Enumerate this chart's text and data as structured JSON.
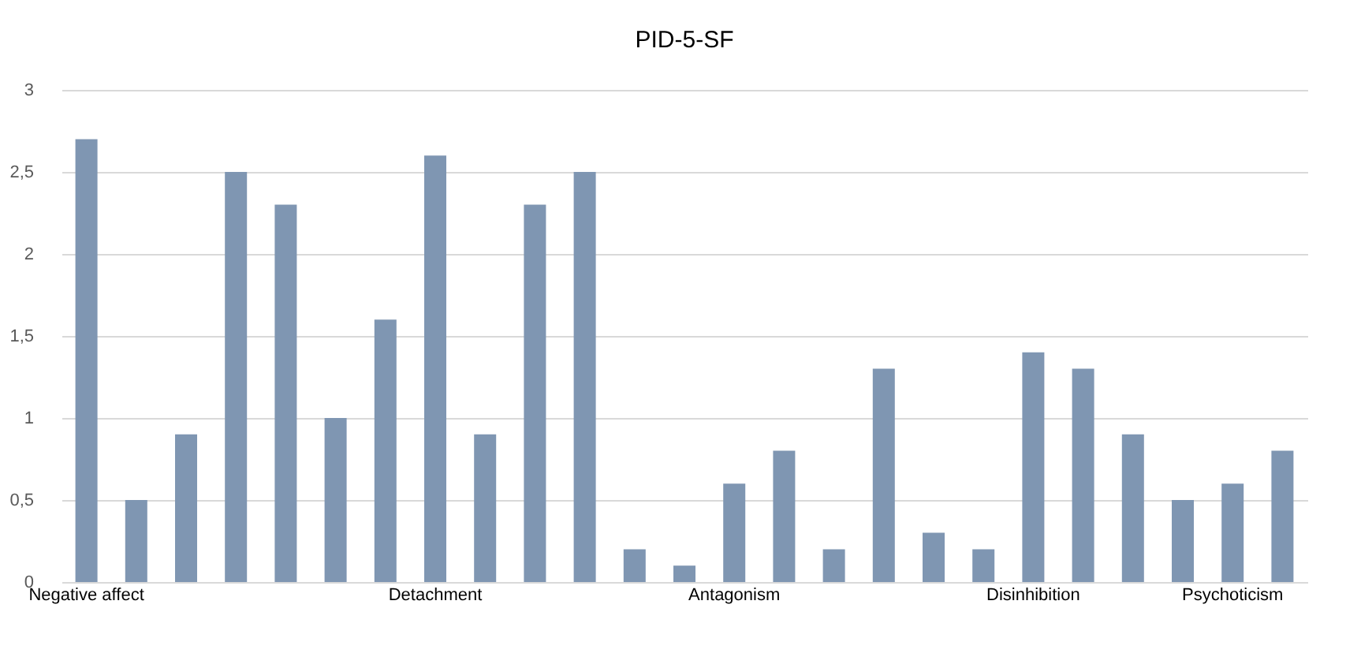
{
  "chart_data": {
    "type": "bar",
    "title": "PID-5-SF",
    "categories": [
      "Negative affect",
      null,
      null,
      null,
      null,
      null,
      null,
      "Detachment",
      null,
      null,
      null,
      null,
      null,
      "Antagonism",
      null,
      null,
      null,
      null,
      null,
      "Disinhibition",
      null,
      null,
      null,
      "Psychoticism",
      null
    ],
    "values": [
      2.7,
      0.5,
      0.9,
      2.5,
      2.3,
      1.0,
      1.6,
      2.6,
      0.9,
      2.3,
      2.5,
      0.2,
      0.1,
      0.6,
      0.8,
      0.2,
      1.3,
      0.3,
      0.2,
      1.4,
      1.3,
      0.9,
      0.5,
      0.6,
      0.8
    ],
    "color": "#7f96b2",
    "ylim": [
      0,
      3
    ],
    "yticks": [
      0,
      {
        "value": 0.5,
        "label": "0,5"
      },
      1,
      {
        "value": 1.5,
        "label": "1,5"
      },
      2,
      {
        "value": 2.5,
        "label": "2,5"
      },
      3
    ],
    "grid": "y"
  }
}
